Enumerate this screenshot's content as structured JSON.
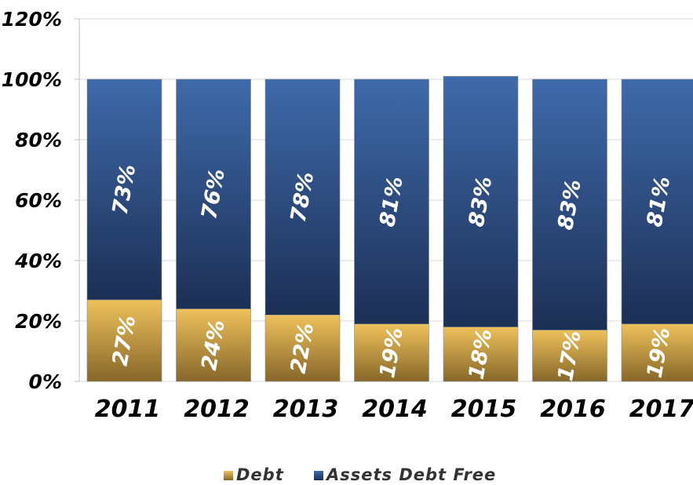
{
  "chart_data": {
    "type": "bar",
    "stacked": true,
    "categories": [
      "2011",
      "2012",
      "2013",
      "2014",
      "2015",
      "2016",
      "2017"
    ],
    "series": [
      {
        "name": "Debt",
        "values": [
          27,
          24,
          22,
          19,
          18,
          17,
          19
        ],
        "labels": [
          "27%",
          "24%",
          "22%",
          "19%",
          "18%",
          "17%",
          "19%"
        ],
        "color": "#d9a844"
      },
      {
        "name": "Assets Debt Free",
        "values": [
          73,
          76,
          78,
          81,
          83,
          83,
          81
        ],
        "labels": [
          "73%",
          "76%",
          "78%",
          "81%",
          "83%",
          "83%",
          "81%"
        ],
        "color": "#2f5496"
      }
    ],
    "yticks": [
      "0%",
      "20%",
      "40%",
      "60%",
      "80%",
      "100%",
      "120%"
    ],
    "ylim": [
      0,
      120
    ],
    "grid": true,
    "legend": "bottom"
  }
}
